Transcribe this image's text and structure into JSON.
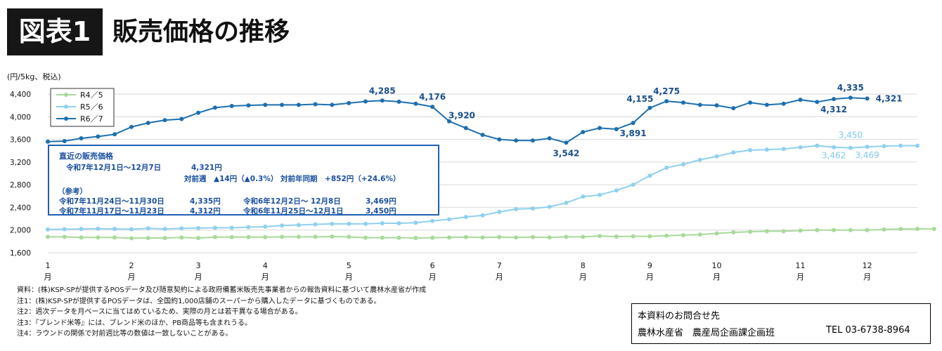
{
  "header": {
    "badge": "図表1",
    "title": "販売価格の推移"
  },
  "chart_data": {
    "type": "line",
    "unit_label": "(円/5kg、税込)",
    "ylim": [
      1600,
      4400
    ],
    "y_ticks": [
      "4,400",
      "4,000",
      "3,600",
      "3,200",
      "2,800",
      "2,400",
      "2,000",
      "1,600"
    ],
    "y_tick_values": [
      4400,
      4000,
      3600,
      3200,
      2800,
      2400,
      2000,
      1600
    ],
    "x_ticks": [
      {
        "month": "1",
        "suffix": "月",
        "index": 0
      },
      {
        "month": "2",
        "suffix": "月",
        "index": 5
      },
      {
        "month": "3",
        "suffix": "月",
        "index": 9
      },
      {
        "month": "4",
        "suffix": "月",
        "index": 13
      },
      {
        "month": "5",
        "suffix": "月",
        "index": 18
      },
      {
        "month": "6",
        "suffix": "月",
        "index": 23
      },
      {
        "month": "7",
        "suffix": "月",
        "index": 27
      },
      {
        "month": "8",
        "suffix": "月",
        "index": 32
      },
      {
        "month": "9",
        "suffix": "月",
        "index": 36
      },
      {
        "month": "10",
        "suffix": "月",
        "index": 40
      },
      {
        "month": "11",
        "suffix": "月",
        "index": 45
      },
      {
        "month": "12",
        "suffix": "月",
        "index": 49
      }
    ],
    "legend_position": "top-left",
    "series": [
      {
        "name": "R4／5",
        "color": "#a8d99a",
        "values": [
          1880,
          1880,
          1870,
          1870,
          1870,
          1855,
          1860,
          1860,
          1870,
          1860,
          1875,
          1875,
          1875,
          1875,
          1880,
          1880,
          1880,
          1885,
          1880,
          1865,
          1865,
          1865,
          1860,
          1865,
          1870,
          1875,
          1870,
          1875,
          1870,
          1875,
          1870,
          1880,
          1880,
          1895,
          1885,
          1890,
          1890,
          1900,
          1910,
          1920,
          1940,
          1960,
          1970,
          1980,
          1980,
          1990,
          2000,
          2000,
          2000,
          2000,
          2010,
          2020,
          2020,
          2020
        ]
      },
      {
        "name": "R5／6",
        "color": "#8fd0ef",
        "values": [
          2010,
          2015,
          2020,
          2025,
          2020,
          2015,
          2030,
          2020,
          2030,
          2035,
          2040,
          2040,
          2050,
          2060,
          2080,
          2090,
          2100,
          2110,
          2110,
          2110,
          2120,
          2120,
          2130,
          2160,
          2190,
          2230,
          2260,
          2320,
          2370,
          2380,
          2410,
          2480,
          2590,
          2620,
          2700,
          2800,
          2960,
          3100,
          3160,
          3240,
          3300,
          3370,
          3410,
          3420,
          3430,
          3460,
          3490,
          3462,
          3450,
          3469,
          3480,
          3490,
          3490
        ]
      },
      {
        "name": "R6／7",
        "color": "#1d6fb0",
        "values": [
          3560,
          3570,
          3620,
          3650,
          3690,
          3820,
          3890,
          3940,
          3960,
          4070,
          4160,
          4190,
          4200,
          4210,
          4210,
          4210,
          4220,
          4210,
          4240,
          4270,
          4285,
          4265,
          4230,
          4176,
          3920,
          3800,
          3680,
          3600,
          3580,
          3580,
          3620,
          3542,
          3730,
          3800,
          3780,
          3891,
          4155,
          4275,
          4250,
          4210,
          4200,
          4150,
          4250,
          4210,
          4230,
          4300,
          4260,
          4312,
          4335,
          4321
        ]
      }
    ],
    "data_labels": [
      {
        "series": 2,
        "index": 20,
        "text": "4,285",
        "pos": "above"
      },
      {
        "series": 2,
        "index": 23,
        "text": "4,176",
        "pos": "above"
      },
      {
        "series": 2,
        "index": 24,
        "text": "3,920",
        "pos": "aboveright"
      },
      {
        "series": 2,
        "index": 31,
        "text": "3,542",
        "pos": "below"
      },
      {
        "series": 2,
        "index": 35,
        "text": "3,891",
        "pos": "below"
      },
      {
        "series": 2,
        "index": 36,
        "text": "4,155",
        "pos": "aboveleft"
      },
      {
        "series": 2,
        "index": 37,
        "text": "4,275",
        "pos": "above"
      },
      {
        "series": 2,
        "index": 47,
        "text": "4,312",
        "pos": "below"
      },
      {
        "series": 2,
        "index": 48,
        "text": "4,335",
        "pos": "above"
      },
      {
        "series": 2,
        "index": 49,
        "text": "4,321",
        "pos": "right"
      },
      {
        "series": 1,
        "index": 48,
        "text": "3,450",
        "pos": "aboveB"
      },
      {
        "series": 1,
        "index": 47,
        "text": "3,462",
        "pos": "belowB"
      },
      {
        "series": 1,
        "index": 49,
        "text": "3,469",
        "pos": "belowB"
      }
    ]
  },
  "infobox": {
    "heading": "直近の販売価格",
    "line1_period": "令和7年12月1日～12月7日",
    "line1_price": "4,321円",
    "line2": "対前週　▲14円（▲0.3%） 対前年同期　+852円（+24.6%）",
    "ref_heading": "（参考）",
    "ref1_period": "令和7年11月24日～11月30日",
    "ref1_price": "4,335円",
    "ref1_prev_period": "令和6年12月2日～ 12月8日",
    "ref1_prev_price": "3,469円",
    "ref2_period": "令和7年11月17日～11月23日",
    "ref2_price": "4,312円",
    "ref2_prev_period": "令和6年11月25日～12月1日",
    "ref2_prev_price": "3,450円"
  },
  "notes": [
    "資料：(株)KSP-SPが提供するPOSデータ及び随意契約による政府備蓄米販売先事業者からの報告資料に基づいて農林水産省が作成",
    "注1：(株)KSP-SPが提供するPOSデータは、全国約1,000店舗のスーパーから購入したデータに基づくものである。",
    "注2：週次データを月ベースに当てはめているため、実際の月とは若干異なる場合がある。",
    "注3：『ブレンド米等』には、ブレンド米のほか、PB商品等も含まれうる。",
    "注4：ラウンドの関係で対前週比等の数値は一致しないことがある。"
  ],
  "contact": {
    "heading": "本資料のお問合せ先",
    "org": "農林水産省　農産局企画課企画班",
    "tel": "TEL 03-6738-8964"
  }
}
